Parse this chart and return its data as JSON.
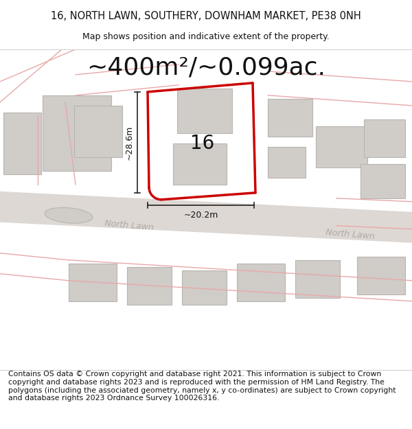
{
  "title_line1": "16, NORTH LAWN, SOUTHERY, DOWNHAM MARKET, PE38 0NH",
  "title_line2": "Map shows position and indicative extent of the property.",
  "area_text": "~400m²/~0.099ac.",
  "label_16": "16",
  "dim_width": "~20.2m",
  "dim_height": "~28.6m",
  "road_label1": "North Lawn",
  "road_label2": "North Lawn",
  "footer_text": "Contains OS data © Crown copyright and database right 2021. This information is subject to Crown copyright and database rights 2023 and is reproduced with the permission of HM Land Registry. The polygons (including the associated geometry, namely x, y co-ordinates) are subject to Crown copyright and database rights 2023 Ordnance Survey 100026316.",
  "map_bg": "#ece8e4",
  "plot_border_color": "#cc0000",
  "dim_line_color": "#222222",
  "title_fontsize": 10.5,
  "subtitle_fontsize": 9,
  "area_fontsize": 26,
  "label_fontsize": 20,
  "road_label_fontsize": 9,
  "footer_fontsize": 7.8
}
